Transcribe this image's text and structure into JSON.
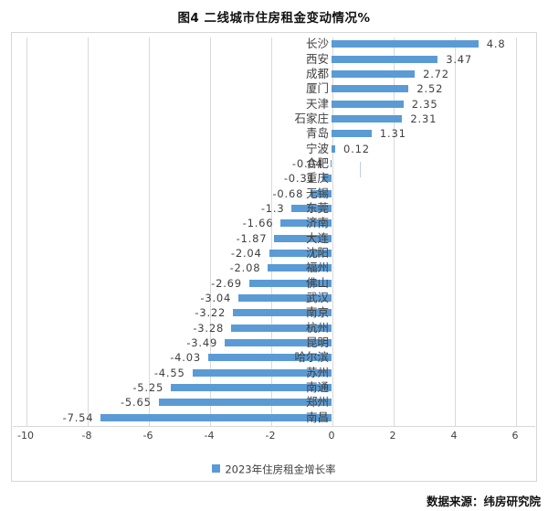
{
  "title": "图4  二线城市住房租金变动情况%",
  "source": "数据来源：纬房研究院",
  "legend": {
    "label": "2023年住房租金增长率"
  },
  "colors": {
    "bar": "#5b9bd5",
    "grid": "#d9d9d9",
    "frame": "#d6d6d6",
    "text": "#404040",
    "title_text": "#111111"
  },
  "chart_data": {
    "type": "bar",
    "orientation": "horizontal",
    "title": "图4  二线城市住房租金变动情况%",
    "legend_entries": [
      "2023年住房租金增长率"
    ],
    "legend_position": "bottom",
    "grid": true,
    "xlim": [
      -10,
      6
    ],
    "xticks": [
      -10,
      -8,
      -6,
      -4,
      -2,
      0,
      2,
      4,
      6
    ],
    "xlabel": "",
    "ylabel": "",
    "categories": [
      "长沙",
      "西安",
      "成都",
      "厦门",
      "天津",
      "石家庄",
      "青岛",
      "宁波",
      "合肥",
      "重庆",
      "无锡",
      "东莞",
      "济南",
      "大连",
      "沈阳",
      "福州",
      "佛山",
      "武汉",
      "南京",
      "杭州",
      "昆明",
      "哈尔滨",
      "苏州",
      "南通",
      "郑州",
      "南昌"
    ],
    "values": [
      4.8,
      3.47,
      2.72,
      2.52,
      2.35,
      2.31,
      1.31,
      0.12,
      -0.04,
      -0.31,
      -0.68,
      -1.3,
      -1.66,
      -1.87,
      -2.04,
      -2.08,
      -2.69,
      -3.04,
      -3.22,
      -3.28,
      -3.49,
      -4.03,
      -4.55,
      -5.25,
      -5.65,
      -7.54
    ],
    "value_labels": [
      "4.8",
      "3.47",
      "2.72",
      "2.52",
      "2.35",
      "2.31",
      "1.31",
      "0.12",
      "-0.04",
      "-0.31",
      "-0.68",
      "-1.3",
      "-1.66",
      "-1.87",
      "-2.04",
      "-2.08",
      "-2.69",
      "-3.04",
      "-3.22",
      "-3.28",
      "-3.49",
      "-4.03",
      "-4.55",
      "-5.25",
      "-5.65",
      "-7.54"
    ]
  }
}
